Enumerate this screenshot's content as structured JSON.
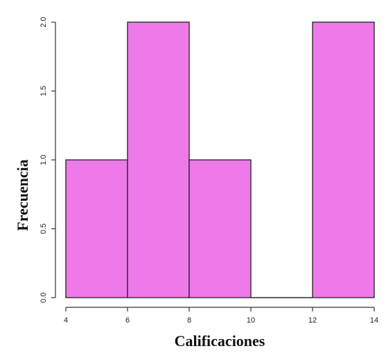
{
  "chart_data": {
    "type": "bar",
    "bins": [
      {
        "start": 4,
        "end": 6,
        "count": 1
      },
      {
        "start": 6,
        "end": 8,
        "count": 2
      },
      {
        "start": 8,
        "end": 10,
        "count": 1
      },
      {
        "start": 10,
        "end": 12,
        "count": 0
      },
      {
        "start": 12,
        "end": 14,
        "count": 2
      }
    ],
    "xlabel": "Calificaciones",
    "ylabel": "Frecuencia",
    "xlim": [
      4,
      14
    ],
    "ylim": [
      0,
      2
    ],
    "xticks": [
      "4",
      "6",
      "8",
      "10",
      "12",
      "14"
    ],
    "yticks": [
      "0.0",
      "0.5",
      "1.0",
      "1.5",
      "2.0"
    ],
    "grid": false,
    "bar_color": "#ee7aea",
    "bar_edge_color": "#2b2b2b"
  }
}
